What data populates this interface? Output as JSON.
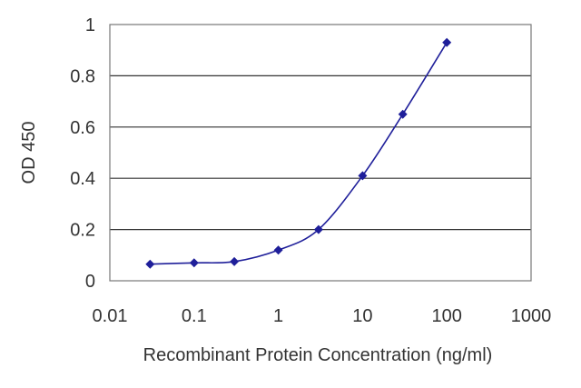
{
  "chart_data": {
    "type": "line",
    "title": "",
    "xlabel": "Recombinant Protein Concentration (ng/ml)",
    "ylabel": "OD 450",
    "xscale": "log",
    "xlim": [
      0.01,
      1000
    ],
    "ylim": [
      0,
      1
    ],
    "grid": "horizontal",
    "legend": "none",
    "x_ticks": [
      0.01,
      0.1,
      1,
      10,
      100,
      1000
    ],
    "x_tick_labels": [
      "0.01",
      "0.1",
      "1",
      "10",
      "100",
      "1000"
    ],
    "y_ticks": [
      0,
      0.2,
      0.4,
      0.6,
      0.8,
      1
    ],
    "y_tick_labels": [
      "0",
      "0.2",
      "0.4",
      "0.6",
      "0.8",
      "1"
    ],
    "series": [
      {
        "color": "#1f1f9a",
        "marker": "diamond",
        "x": [
          0.03,
          0.1,
          0.3,
          1,
          3,
          10,
          30,
          100
        ],
        "y": [
          0.065,
          0.07,
          0.075,
          0.12,
          0.2,
          0.41,
          0.65,
          0.93
        ]
      }
    ]
  }
}
